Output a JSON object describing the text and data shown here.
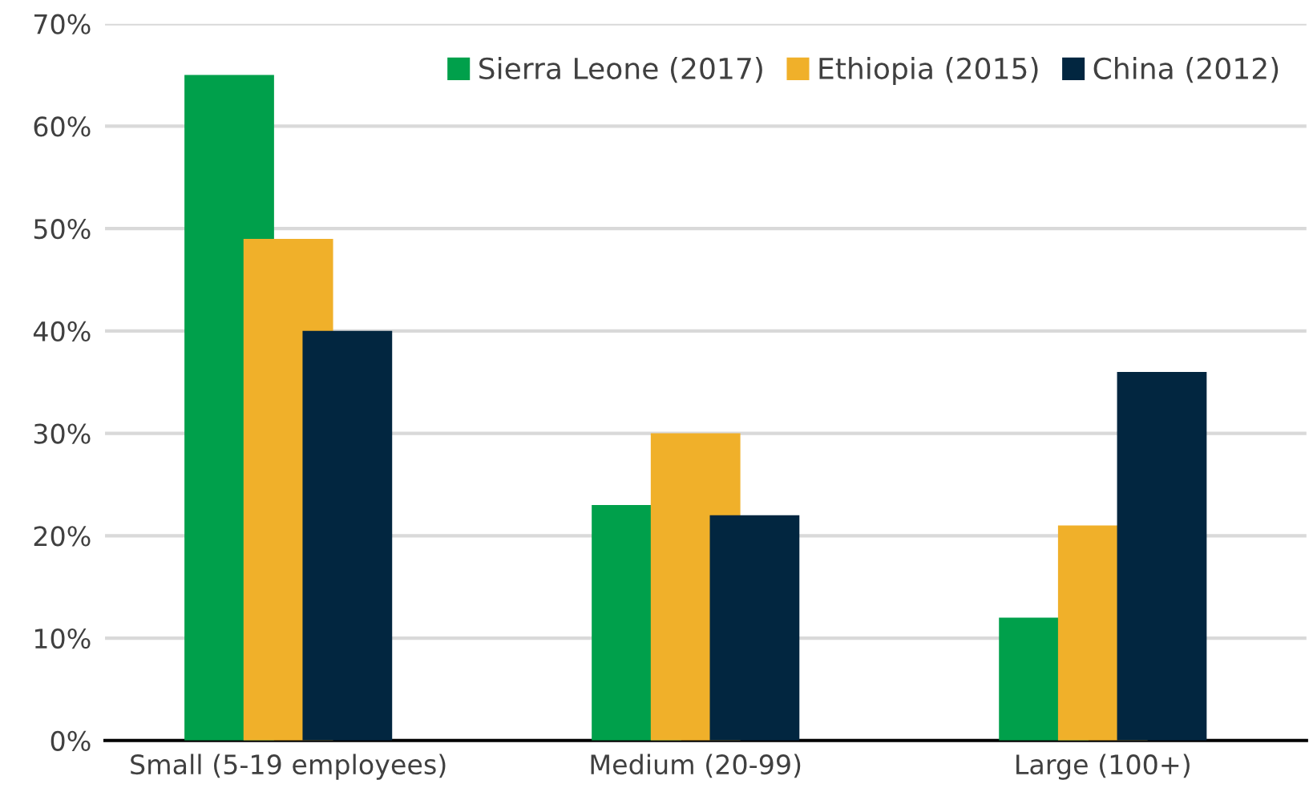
{
  "chart_data": {
    "type": "bar",
    "categories": [
      "Small (5-19 employees)",
      "Medium (20-99)",
      "Large (100+)"
    ],
    "series": [
      {
        "name": "Sierra Leone (2017)",
        "color": "#00a04b",
        "values": [
          65,
          23,
          12
        ]
      },
      {
        "name": "Ethiopia (2015)",
        "color": "#f0b02a",
        "values": [
          49,
          30,
          21
        ]
      },
      {
        "name": "China (2012)",
        "color": "#022640",
        "values": [
          40,
          22,
          36
        ]
      }
    ],
    "ylim": [
      0,
      70
    ],
    "yticks": [
      {
        "value": 0,
        "label": "0%"
      },
      {
        "value": 10,
        "label": "10%"
      },
      {
        "value": 20,
        "label": "20%"
      },
      {
        "value": 30,
        "label": "30%"
      },
      {
        "value": 40,
        "label": "40%"
      },
      {
        "value": 50,
        "label": "50%"
      },
      {
        "value": 60,
        "label": "60%"
      },
      {
        "value": 70,
        "label": "70%"
      }
    ],
    "grid": "y",
    "legend": "top right"
  }
}
